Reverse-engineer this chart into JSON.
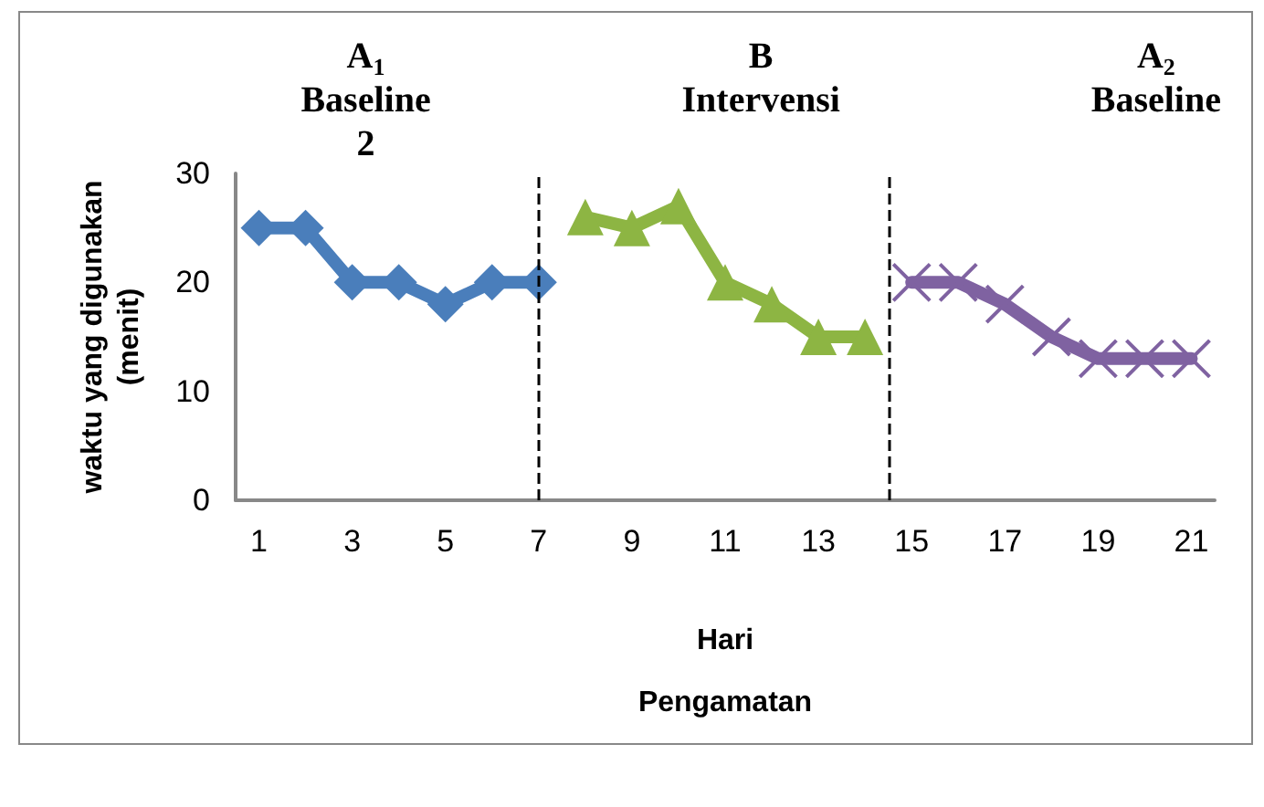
{
  "chart_data": {
    "type": "line",
    "xlabel": "Hari\nPengamatan",
    "ylabel": "waktu yang digunakan\n(menit)",
    "x": [
      1,
      2,
      3,
      4,
      5,
      6,
      7,
      8,
      9,
      10,
      11,
      12,
      13,
      14,
      15,
      16,
      17,
      18,
      19,
      20,
      21
    ],
    "series": [
      {
        "color": "#4a7ebb",
        "marker": "diamond",
        "values": [
          25,
          25,
          20,
          20,
          18,
          20,
          20,
          null,
          null,
          null,
          null,
          null,
          null,
          null,
          null,
          null,
          null,
          null,
          null,
          null,
          null
        ]
      },
      {
        "color": "#8db543",
        "marker": "triangle",
        "values": [
          null,
          null,
          null,
          null,
          null,
          null,
          null,
          26,
          25,
          27,
          20,
          18,
          15,
          15,
          null,
          null,
          null,
          null,
          null,
          null,
          null
        ]
      },
      {
        "color": "#7f62a1",
        "marker": "cross",
        "values": [
          null,
          null,
          null,
          null,
          null,
          null,
          null,
          null,
          null,
          null,
          null,
          null,
          null,
          null,
          20,
          20,
          18,
          15,
          13,
          13,
          13
        ]
      }
    ],
    "xlim": [
      0.5,
      21.5
    ],
    "xticks": [
      1,
      3,
      5,
      7,
      9,
      11,
      13,
      15,
      17,
      19,
      21
    ],
    "ylim": [
      0,
      30
    ],
    "yticks": [
      0,
      10,
      20,
      30
    ],
    "ref_lines": [
      {
        "axis": "x",
        "value": 7,
        "line_style": "dashed",
        "color": "#000000"
      },
      {
        "axis": "x",
        "value": 14.5,
        "line_style": "dashed",
        "color": "#000000"
      }
    ],
    "annotations": [
      "A$_{1}$\nBaseline\n2",
      "B\nIntervensi",
      "A$_{2}$\nBaseline"
    ],
    "grid": false,
    "line_style": "solid"
  }
}
